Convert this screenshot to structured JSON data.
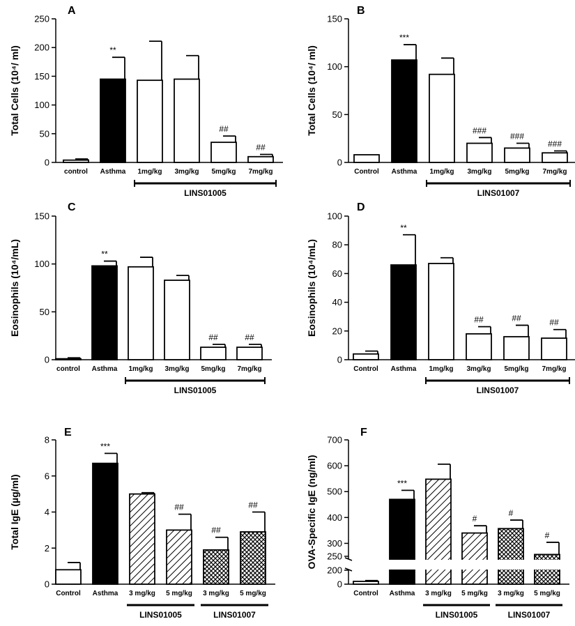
{
  "chart_data": [
    {
      "type": "bar",
      "panel": "A",
      "ylabel": "Total Cells (10⁴/ ml)",
      "ylim": [
        0,
        250
      ],
      "yticks": [
        0,
        50,
        100,
        150,
        200,
        250
      ],
      "categories": [
        "control",
        "Asthma",
        "1mg/kg",
        "3mg/kg",
        "5mg/kg",
        "7mg/kg"
      ],
      "values": [
        4,
        145,
        143,
        145,
        35,
        10
      ],
      "errors": [
        2,
        38,
        68,
        41,
        11,
        4
      ],
      "fills": [
        "white",
        "black",
        "white",
        "white",
        "white",
        "white"
      ],
      "annotations": [
        "",
        "**",
        "",
        "",
        "##",
        "##"
      ],
      "groups": [
        {
          "label": "LINS01005",
          "from": 2,
          "to": 5
        }
      ]
    },
    {
      "type": "bar",
      "panel": "B",
      "ylabel": "Total Cells (10⁴/ ml)",
      "ylim": [
        0,
        150
      ],
      "yticks": [
        0,
        50,
        100,
        150
      ],
      "categories": [
        "Control",
        "Asthma",
        "1mg/kg",
        "3mg/kg",
        "5mg/kg",
        "7mg/kg"
      ],
      "values": [
        8,
        107,
        92,
        20,
        15,
        10
      ],
      "errors": [
        0,
        16,
        17,
        6,
        5,
        2
      ],
      "fills": [
        "white",
        "black",
        "white",
        "white",
        "white",
        "white"
      ],
      "annotations": [
        "",
        "***",
        "",
        "###",
        "###",
        "###"
      ],
      "groups": [
        {
          "label": "LINS01007",
          "from": 2,
          "to": 5
        }
      ]
    },
    {
      "type": "bar",
      "panel": "C",
      "ylabel": "Eosinophils (10⁴/mL)",
      "ylim": [
        0,
        150
      ],
      "yticks": [
        0,
        50,
        100,
        150
      ],
      "categories": [
        "control",
        "Asthma",
        "1mg/kg",
        "3mg/kg",
        "5mg/kg",
        "7mg/kg"
      ],
      "values": [
        1,
        98,
        97,
        83,
        13,
        13
      ],
      "errors": [
        1,
        5,
        10,
        5,
        3,
        3
      ],
      "fills": [
        "white",
        "black",
        "white",
        "white",
        "white",
        "white"
      ],
      "annotations": [
        "",
        "**",
        "",
        "",
        "##",
        "##"
      ],
      "groups": [
        {
          "label": "LINS01005",
          "from": 2,
          "to": 5
        }
      ]
    },
    {
      "type": "bar",
      "panel": "D",
      "ylabel": "Eosinophils (10⁴/mL)",
      "ylim": [
        0,
        100
      ],
      "yticks": [
        0,
        20,
        40,
        60,
        80,
        100
      ],
      "categories": [
        "Control",
        "Asthma",
        "1mg/kg",
        "3mg/kg",
        "5mg/kg",
        "7mg/kg"
      ],
      "values": [
        4,
        66,
        67,
        18,
        16,
        15
      ],
      "errors": [
        2,
        21,
        4,
        5,
        8,
        6
      ],
      "fills": [
        "white",
        "black",
        "white",
        "white",
        "white",
        "white"
      ],
      "annotations": [
        "",
        "**",
        "",
        "##",
        "##",
        "##"
      ],
      "groups": [
        {
          "label": "LINS01007",
          "from": 2,
          "to": 5
        }
      ]
    },
    {
      "type": "bar",
      "panel": "E",
      "ylabel": "Total IgE (µg/ml)",
      "ylim": [
        0,
        8
      ],
      "yticks": [
        0,
        2,
        4,
        6,
        8
      ],
      "categories": [
        "Control",
        "Asthma",
        "3 mg/kg",
        "5 mg/kg",
        "3 mg/kg",
        "5 mg/kg"
      ],
      "values": [
        0.8,
        6.7,
        5.0,
        3.0,
        1.9,
        2.9
      ],
      "errors": [
        0.4,
        0.55,
        0.07,
        0.88,
        0.7,
        1.1
      ],
      "fills": [
        "white",
        "black",
        "hatch",
        "hatch",
        "cross",
        "cross"
      ],
      "annotations": [
        "",
        "***",
        "",
        "##",
        "##",
        "##"
      ],
      "groups": [
        {
          "label": "LINS01005",
          "from": 2,
          "to": 3
        },
        {
          "label": "LINS01007",
          "from": 4,
          "to": 5
        }
      ]
    },
    {
      "type": "bar",
      "panel": "F",
      "ylabel": "OVA-Specific IgE (ng/ml)",
      "ylim": [
        0,
        700
      ],
      "yticks": [
        0,
        200,
        250,
        300,
        400,
        500,
        600,
        700
      ],
      "axis_break": [
        50,
        200
      ],
      "categories": [
        "Control",
        "Asthma",
        "3 mg/kg",
        "5 mg/kg",
        "3 mg/kg",
        "5 mg/kg"
      ],
      "values": [
        10,
        470,
        548,
        340,
        357,
        257
      ],
      "errors": [
        3,
        35,
        58,
        28,
        33,
        47
      ],
      "fills": [
        "white",
        "black",
        "hatch",
        "hatch",
        "cross",
        "cross"
      ],
      "annotations": [
        "",
        "***",
        "",
        "#",
        "#",
        "#"
      ],
      "groups": [
        {
          "label": "LINS01005",
          "from": 2,
          "to": 3
        },
        {
          "label": "LINS01007",
          "from": 4,
          "to": 5
        }
      ]
    }
  ]
}
